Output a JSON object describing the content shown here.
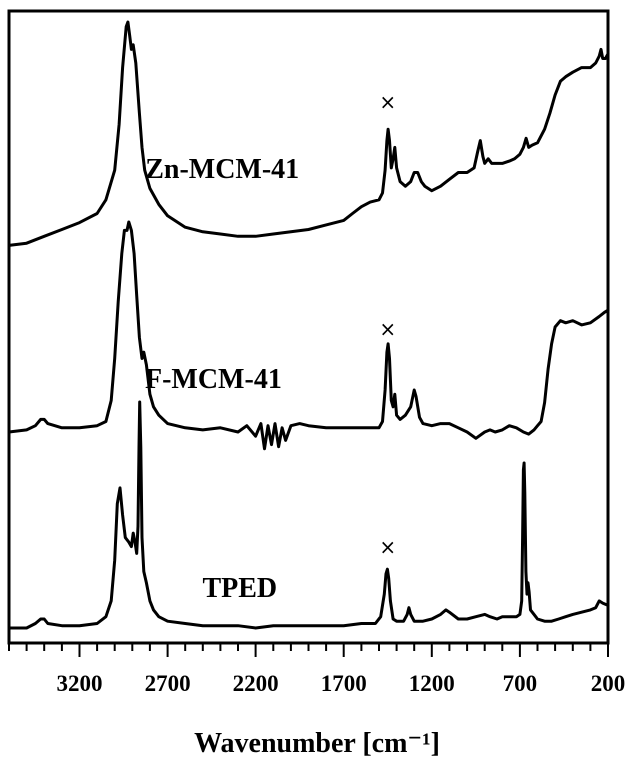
{
  "chart_data": {
    "type": "line",
    "title": "",
    "xlabel": "Wavenumber [cm⁻¹]",
    "ylabel": "",
    "xlim": [
      3600,
      200
    ],
    "x_reversed": true,
    "x_ticks": [
      3200,
      2700,
      2200,
      1700,
      1200,
      700,
      200
    ],
    "x_minor_step": 100,
    "y_ticks": false,
    "grid": false,
    "legend": "none",
    "line_color": "#000000",
    "marker_symbol": "×",
    "marker_positions": [
      1450,
      1450,
      1450
    ],
    "series": [
      {
        "name": "Zn-MCM-41",
        "label": "Zn-MCM-41",
        "label_x": 2390,
        "baseline": 0.0,
        "points": [
          [
            3600,
            0.02
          ],
          [
            3500,
            0.03
          ],
          [
            3400,
            0.06
          ],
          [
            3300,
            0.09
          ],
          [
            3200,
            0.12
          ],
          [
            3100,
            0.16
          ],
          [
            3050,
            0.22
          ],
          [
            3000,
            0.35
          ],
          [
            2975,
            0.55
          ],
          [
            2955,
            0.8
          ],
          [
            2935,
            0.98
          ],
          [
            2925,
            1.0
          ],
          [
            2915,
            0.94
          ],
          [
            2905,
            0.88
          ],
          [
            2895,
            0.9
          ],
          [
            2880,
            0.82
          ],
          [
            2860,
            0.6
          ],
          [
            2845,
            0.45
          ],
          [
            2830,
            0.35
          ],
          [
            2800,
            0.27
          ],
          [
            2750,
            0.2
          ],
          [
            2700,
            0.15
          ],
          [
            2600,
            0.1
          ],
          [
            2500,
            0.08
          ],
          [
            2400,
            0.07
          ],
          [
            2300,
            0.06
          ],
          [
            2200,
            0.06
          ],
          [
            2100,
            0.07
          ],
          [
            2000,
            0.08
          ],
          [
            1900,
            0.09
          ],
          [
            1800,
            0.11
          ],
          [
            1700,
            0.13
          ],
          [
            1650,
            0.16
          ],
          [
            1600,
            0.19
          ],
          [
            1550,
            0.21
          ],
          [
            1500,
            0.22
          ],
          [
            1480,
            0.25
          ],
          [
            1465,
            0.35
          ],
          [
            1455,
            0.48
          ],
          [
            1448,
            0.53
          ],
          [
            1440,
            0.48
          ],
          [
            1430,
            0.36
          ],
          [
            1420,
            0.4
          ],
          [
            1410,
            0.45
          ],
          [
            1400,
            0.36
          ],
          [
            1380,
            0.3
          ],
          [
            1350,
            0.28
          ],
          [
            1320,
            0.3
          ],
          [
            1300,
            0.34
          ],
          [
            1280,
            0.34
          ],
          [
            1260,
            0.3
          ],
          [
            1240,
            0.28
          ],
          [
            1200,
            0.26
          ],
          [
            1150,
            0.28
          ],
          [
            1100,
            0.31
          ],
          [
            1050,
            0.34
          ],
          [
            1000,
            0.34
          ],
          [
            960,
            0.36
          ],
          [
            940,
            0.43
          ],
          [
            925,
            0.48
          ],
          [
            910,
            0.41
          ],
          [
            900,
            0.38
          ],
          [
            880,
            0.4
          ],
          [
            860,
            0.38
          ],
          [
            800,
            0.38
          ],
          [
            760,
            0.39
          ],
          [
            730,
            0.4
          ],
          [
            700,
            0.42
          ],
          [
            680,
            0.45
          ],
          [
            665,
            0.49
          ],
          [
            650,
            0.45
          ],
          [
            630,
            0.46
          ],
          [
            600,
            0.47
          ],
          [
            560,
            0.53
          ],
          [
            530,
            0.6
          ],
          [
            500,
            0.68
          ],
          [
            470,
            0.74
          ],
          [
            440,
            0.76
          ],
          [
            400,
            0.78
          ],
          [
            350,
            0.8
          ],
          [
            300,
            0.8
          ],
          [
            270,
            0.82
          ],
          [
            250,
            0.85
          ],
          [
            240,
            0.88
          ],
          [
            230,
            0.84
          ],
          [
            215,
            0.84
          ],
          [
            200,
            0.86
          ]
        ]
      },
      {
        "name": "F-MCM-41",
        "label": "F-MCM-41",
        "label_x": 2440,
        "baseline": 0.0,
        "points": [
          [
            3600,
            0.0
          ],
          [
            3500,
            0.01
          ],
          [
            3450,
            0.03
          ],
          [
            3420,
            0.06
          ],
          [
            3400,
            0.06
          ],
          [
            3380,
            0.04
          ],
          [
            3300,
            0.02
          ],
          [
            3200,
            0.02
          ],
          [
            3100,
            0.03
          ],
          [
            3050,
            0.05
          ],
          [
            3020,
            0.15
          ],
          [
            3000,
            0.35
          ],
          [
            2980,
            0.62
          ],
          [
            2960,
            0.85
          ],
          [
            2945,
            0.96
          ],
          [
            2930,
            0.96
          ],
          [
            2920,
            1.0
          ],
          [
            2905,
            0.96
          ],
          [
            2890,
            0.85
          ],
          [
            2875,
            0.65
          ],
          [
            2860,
            0.45
          ],
          [
            2845,
            0.35
          ],
          [
            2835,
            0.38
          ],
          [
            2820,
            0.32
          ],
          [
            2800,
            0.18
          ],
          [
            2780,
            0.12
          ],
          [
            2750,
            0.08
          ],
          [
            2700,
            0.04
          ],
          [
            2600,
            0.02
          ],
          [
            2500,
            0.01
          ],
          [
            2400,
            0.02
          ],
          [
            2300,
            0.0
          ],
          [
            2250,
            0.03
          ],
          [
            2200,
            -0.02
          ],
          [
            2170,
            0.04
          ],
          [
            2150,
            -0.08
          ],
          [
            2130,
            0.03
          ],
          [
            2110,
            -0.06
          ],
          [
            2090,
            0.04
          ],
          [
            2070,
            -0.07
          ],
          [
            2050,
            0.02
          ],
          [
            2030,
            -0.04
          ],
          [
            2000,
            0.03
          ],
          [
            1950,
            0.04
          ],
          [
            1900,
            0.03
          ],
          [
            1800,
            0.02
          ],
          [
            1700,
            0.02
          ],
          [
            1600,
            0.02
          ],
          [
            1500,
            0.02
          ],
          [
            1480,
            0.05
          ],
          [
            1465,
            0.2
          ],
          [
            1455,
            0.38
          ],
          [
            1448,
            0.42
          ],
          [
            1440,
            0.35
          ],
          [
            1430,
            0.15
          ],
          [
            1420,
            0.12
          ],
          [
            1410,
            0.18
          ],
          [
            1400,
            0.08
          ],
          [
            1380,
            0.06
          ],
          [
            1350,
            0.08
          ],
          [
            1320,
            0.12
          ],
          [
            1300,
            0.2
          ],
          [
            1290,
            0.17
          ],
          [
            1270,
            0.07
          ],
          [
            1250,
            0.04
          ],
          [
            1200,
            0.03
          ],
          [
            1150,
            0.04
          ],
          [
            1100,
            0.04
          ],
          [
            1050,
            0.02
          ],
          [
            1000,
            0.0
          ],
          [
            950,
            -0.03
          ],
          [
            900,
            0.0
          ],
          [
            870,
            0.01
          ],
          [
            840,
            0.0
          ],
          [
            800,
            0.01
          ],
          [
            760,
            0.03
          ],
          [
            720,
            0.02
          ],
          [
            680,
            0.0
          ],
          [
            650,
            -0.01
          ],
          [
            620,
            0.01
          ],
          [
            600,
            0.03
          ],
          [
            580,
            0.05
          ],
          [
            560,
            0.14
          ],
          [
            540,
            0.3
          ],
          [
            520,
            0.42
          ],
          [
            500,
            0.5
          ],
          [
            470,
            0.53
          ],
          [
            440,
            0.52
          ],
          [
            400,
            0.53
          ],
          [
            350,
            0.51
          ],
          [
            300,
            0.52
          ],
          [
            250,
            0.55
          ],
          [
            220,
            0.57
          ],
          [
            200,
            0.58
          ]
        ]
      },
      {
        "name": "TPED",
        "label": "TPED",
        "label_x": 2290,
        "baseline": 0.0,
        "points": [
          [
            3600,
            0.0
          ],
          [
            3500,
            0.0
          ],
          [
            3450,
            0.02
          ],
          [
            3420,
            0.04
          ],
          [
            3400,
            0.04
          ],
          [
            3380,
            0.02
          ],
          [
            3300,
            0.01
          ],
          [
            3200,
            0.01
          ],
          [
            3100,
            0.02
          ],
          [
            3050,
            0.05
          ],
          [
            3020,
            0.12
          ],
          [
            3000,
            0.3
          ],
          [
            2985,
            0.55
          ],
          [
            2970,
            0.62
          ],
          [
            2955,
            0.5
          ],
          [
            2940,
            0.4
          ],
          [
            2920,
            0.38
          ],
          [
            2905,
            0.36
          ],
          [
            2895,
            0.42
          ],
          [
            2885,
            0.38
          ],
          [
            2875,
            0.33
          ],
          [
            2868,
            0.45
          ],
          [
            2862,
            0.8
          ],
          [
            2858,
            1.0
          ],
          [
            2852,
            0.8
          ],
          [
            2845,
            0.4
          ],
          [
            2835,
            0.25
          ],
          [
            2820,
            0.2
          ],
          [
            2800,
            0.12
          ],
          [
            2780,
            0.08
          ],
          [
            2750,
            0.05
          ],
          [
            2700,
            0.03
          ],
          [
            2600,
            0.02
          ],
          [
            2500,
            0.01
          ],
          [
            2400,
            0.01
          ],
          [
            2300,
            0.01
          ],
          [
            2200,
            0.0
          ],
          [
            2100,
            0.01
          ],
          [
            2000,
            0.01
          ],
          [
            1900,
            0.01
          ],
          [
            1800,
            0.01
          ],
          [
            1700,
            0.01
          ],
          [
            1600,
            0.02
          ],
          [
            1520,
            0.02
          ],
          [
            1490,
            0.05
          ],
          [
            1470,
            0.15
          ],
          [
            1460,
            0.24
          ],
          [
            1452,
            0.26
          ],
          [
            1445,
            0.22
          ],
          [
            1435,
            0.12
          ],
          [
            1420,
            0.04
          ],
          [
            1400,
            0.03
          ],
          [
            1380,
            0.03
          ],
          [
            1360,
            0.03
          ],
          [
            1340,
            0.06
          ],
          [
            1330,
            0.09
          ],
          [
            1320,
            0.06
          ],
          [
            1300,
            0.03
          ],
          [
            1250,
            0.03
          ],
          [
            1200,
            0.04
          ],
          [
            1150,
            0.06
          ],
          [
            1120,
            0.08
          ],
          [
            1100,
            0.07
          ],
          [
            1050,
            0.04
          ],
          [
            1000,
            0.04
          ],
          [
            950,
            0.05
          ],
          [
            900,
            0.06
          ],
          [
            870,
            0.05
          ],
          [
            830,
            0.04
          ],
          [
            800,
            0.05
          ],
          [
            760,
            0.05
          ],
          [
            720,
            0.05
          ],
          [
            700,
            0.06
          ],
          [
            690,
            0.12
          ],
          [
            685,
            0.4
          ],
          [
            680,
            0.7
          ],
          [
            676,
            0.73
          ],
          [
            672,
            0.6
          ],
          [
            666,
            0.25
          ],
          [
            660,
            0.15
          ],
          [
            654,
            0.2
          ],
          [
            648,
            0.16
          ],
          [
            640,
            0.08
          ],
          [
            620,
            0.06
          ],
          [
            600,
            0.04
          ],
          [
            560,
            0.03
          ],
          [
            520,
            0.03
          ],
          [
            480,
            0.04
          ],
          [
            440,
            0.05
          ],
          [
            400,
            0.06
          ],
          [
            350,
            0.07
          ],
          [
            300,
            0.08
          ],
          [
            270,
            0.09
          ],
          [
            250,
            0.12
          ],
          [
            230,
            0.11
          ],
          [
            200,
            0.1
          ]
        ]
      }
    ]
  }
}
